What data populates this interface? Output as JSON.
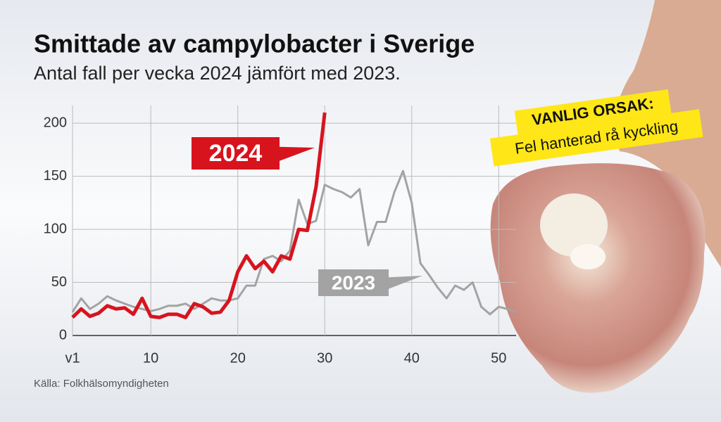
{
  "chart_data": {
    "type": "line",
    "title": "Smittade av campylobacter i Sverige",
    "subtitle": "Antal fall per vecka 2024 jämfört med 2023.",
    "source": "Källa: Folkhälsomyndigheten",
    "annotation": {
      "title": "VANLIG ORSAK:",
      "text": "Fel hanterad rå kyckling"
    },
    "x": [
      1,
      2,
      3,
      4,
      5,
      6,
      7,
      8,
      9,
      10,
      11,
      12,
      13,
      14,
      15,
      16,
      17,
      18,
      19,
      20,
      21,
      22,
      23,
      24,
      25,
      26,
      27,
      28,
      29,
      30,
      31,
      32,
      33,
      34,
      35,
      36,
      37,
      38,
      39,
      40,
      41,
      42,
      43,
      44,
      45,
      46,
      47,
      48,
      49,
      50,
      51,
      52
    ],
    "series": [
      {
        "name": "2024",
        "color": "#d7141e",
        "values": [
          17,
          25,
          18,
          21,
          28,
          25,
          26,
          20,
          35,
          18,
          17,
          20,
          20,
          17,
          30,
          27,
          21,
          22,
          33,
          60,
          75,
          63,
          70,
          60,
          75,
          72,
          100,
          99,
          140,
          210,
          null,
          null,
          null,
          null,
          null,
          null,
          null,
          null,
          null,
          null,
          null,
          null,
          null,
          null,
          null,
          null,
          null,
          null,
          null,
          null,
          null,
          null
        ]
      },
      {
        "name": "2023",
        "color": "#a3a3a3",
        "values": [
          22,
          35,
          25,
          30,
          37,
          33,
          30,
          27,
          25,
          23,
          25,
          28,
          28,
          30,
          25,
          30,
          35,
          33,
          33,
          35,
          47,
          47,
          72,
          75,
          70,
          80,
          128,
          105,
          108,
          142,
          138,
          135,
          130,
          138,
          85,
          107,
          107,
          135,
          155,
          125,
          68,
          57,
          45,
          35,
          47,
          43,
          50,
          27,
          20,
          27,
          25,
          22
        ]
      }
    ],
    "xlim": [
      1,
      52
    ],
    "xticks": [
      {
        "value": 1,
        "label": "v1"
      },
      10,
      20,
      30,
      40,
      50
    ],
    "ylim": [
      0,
      220
    ],
    "yticks": [
      0,
      50,
      100,
      150,
      200
    ],
    "grid": true
  }
}
